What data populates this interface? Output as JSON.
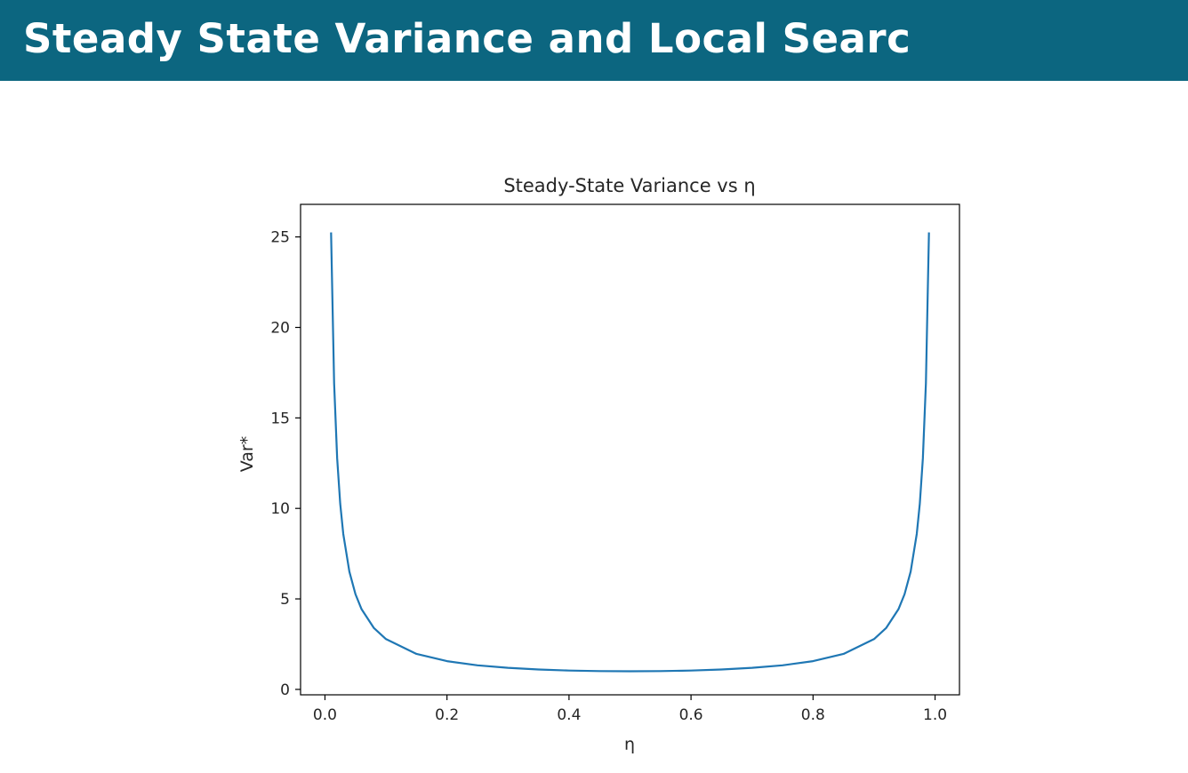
{
  "slide": {
    "title": "Steady State Variance and Local Searc"
  },
  "chart_data": {
    "type": "line",
    "title": "Steady-State Variance vs η",
    "xlabel": "η",
    "ylabel": "Var*",
    "xlim": [
      -0.04,
      1.04
    ],
    "ylim": [
      -0.3,
      26.8
    ],
    "xticks": [
      0.0,
      0.2,
      0.4,
      0.6,
      0.8,
      1.0
    ],
    "xtick_labels": [
      "0.0",
      "0.2",
      "0.4",
      "0.6",
      "0.8",
      "1.0"
    ],
    "yticks": [
      0,
      5,
      10,
      15,
      20,
      25
    ],
    "ytick_labels": [
      "0",
      "5",
      "10",
      "15",
      "20",
      "25"
    ],
    "grid": false,
    "series": [
      {
        "color": "#1f77b4",
        "x": [
          0.01,
          0.015,
          0.02,
          0.025,
          0.03,
          0.04,
          0.05,
          0.06,
          0.08,
          0.1,
          0.15,
          0.2,
          0.25,
          0.3,
          0.35,
          0.4,
          0.45,
          0.5,
          0.55,
          0.6,
          0.65,
          0.7,
          0.75,
          0.8,
          0.85,
          0.9,
          0.92,
          0.94,
          0.95,
          0.96,
          0.97,
          0.975,
          0.98,
          0.985,
          0.99
        ],
        "y": [
          25.25,
          16.92,
          12.76,
          10.26,
          8.59,
          6.51,
          5.26,
          4.43,
          3.4,
          2.78,
          1.96,
          1.56,
          1.33,
          1.19,
          1.1,
          1.04,
          1.01,
          1.0,
          1.01,
          1.04,
          1.1,
          1.19,
          1.33,
          1.56,
          1.96,
          2.78,
          3.4,
          4.43,
          5.26,
          6.51,
          8.59,
          10.26,
          12.76,
          16.92,
          25.25
        ]
      }
    ]
  }
}
